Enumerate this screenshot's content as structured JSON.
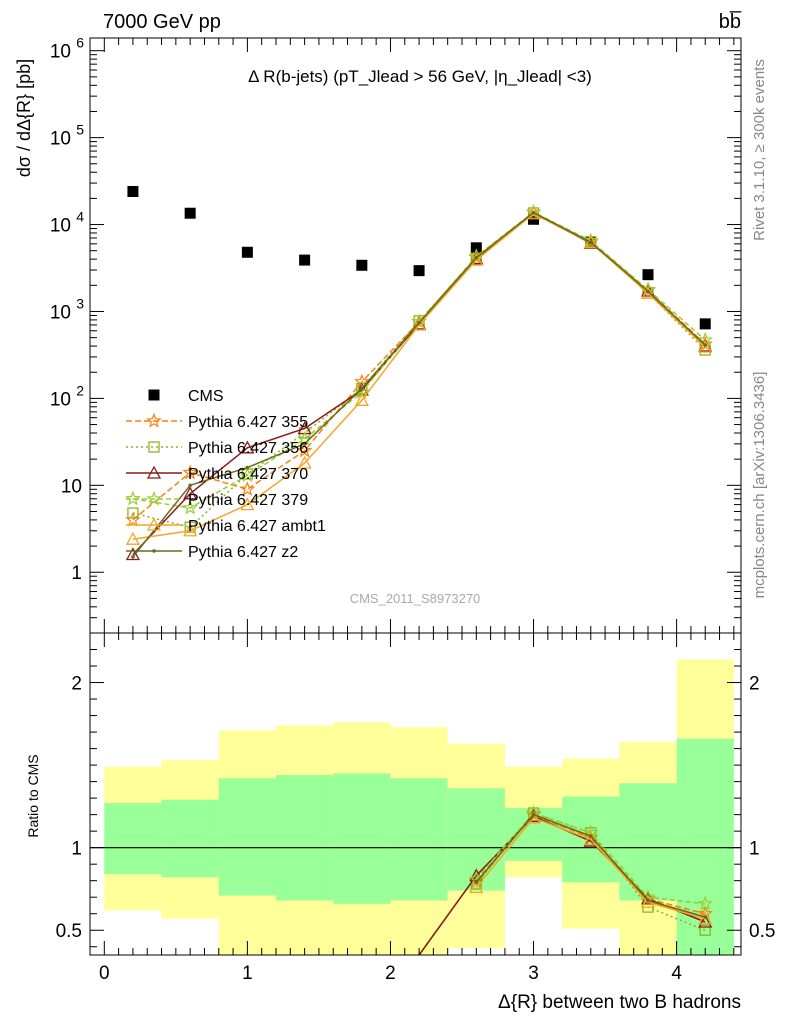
{
  "header": {
    "left": "7000 GeV pp",
    "right": "bb̅",
    "side_right_top": "Rivet 3.1.10, ≥ 300k events",
    "side_right_bottom": "mcplots.cern.ch [arXiv:1306.3436]",
    "watermark": "CMS_2011_S8973270"
  },
  "chart_data": [
    {
      "type": "scatter",
      "title": "Δ R(b-jets) (pT_Jlead > 56 GeV, |η_Jlead| <3)",
      "ylabel": "dσ / dΔ{R} [pb]",
      "yscale": "log",
      "ylim": [
        0.2,
        1400000
      ],
      "xlim": [
        -0.1,
        4.45
      ],
      "yticks": [
        {
          "v": 1000000,
          "base": "10",
          "exp": "6"
        },
        {
          "v": 100000,
          "base": "10",
          "exp": "5"
        },
        {
          "v": 10000,
          "base": "10",
          "exp": "4"
        },
        {
          "v": 1000,
          "base": "10",
          "exp": "3"
        },
        {
          "v": 100,
          "base": "10",
          "exp": "2"
        },
        {
          "v": 10,
          "base": "10",
          "exp": ""
        },
        {
          "v": 1,
          "base": "1",
          "exp": ""
        }
      ],
      "legend_position": "left-middle",
      "series": [
        {
          "name": "CMS",
          "color": "#000000",
          "marker": "square",
          "dash": "none",
          "x": [
            0.2,
            0.6,
            1.0,
            1.4,
            1.8,
            2.2,
            2.6,
            3.0,
            3.4,
            3.8,
            4.2
          ],
          "y": [
            24000,
            13500,
            4800,
            3900,
            3400,
            2950,
            5400,
            11500,
            6200,
            2650,
            720
          ]
        },
        {
          "name": "Pythia 6.427 355",
          "color": "#ff7f0e",
          "marker": "star",
          "dash": "6,3",
          "x": [
            0.2,
            0.6,
            1.0,
            1.4,
            1.8,
            2.2,
            2.6,
            3.0,
            3.4,
            3.8,
            4.2
          ],
          "y": [
            4.0,
            14.0,
            9.0,
            25.0,
            155,
            760,
            4200,
            13800,
            6300,
            1750,
            420
          ]
        },
        {
          "name": "Pythia 6.427 356",
          "color": "#8fb31f",
          "marker": "open-square",
          "dash": "2,3",
          "x": [
            0.2,
            0.6,
            1.0,
            1.4,
            1.8,
            2.2,
            2.6,
            3.0,
            3.4,
            3.8,
            4.2
          ],
          "y": [
            4.8,
            3.3,
            13.5,
            40,
            130,
            780,
            4100,
            13600,
            6350,
            1630,
            360
          ]
        },
        {
          "name": "Pythia 6.427 370",
          "color": "#8b1a1a",
          "marker": "open-triangle",
          "dash": "none",
          "x": [
            0.2,
            0.6,
            1.0,
            1.4,
            1.8,
            2.2,
            2.6,
            3.0,
            3.4,
            3.8,
            4.2
          ],
          "y": [
            1.6,
            8.0,
            27,
            45,
            125,
            720,
            4050,
            13500,
            6100,
            1720,
            400
          ]
        },
        {
          "name": "Pythia 6.427 379",
          "color": "#9acd32",
          "marker": "star",
          "dash": "5,3",
          "x": [
            0.2,
            0.6,
            1.0,
            1.4,
            1.8,
            2.2,
            2.6,
            3.0,
            3.4,
            3.8,
            4.2
          ],
          "y": [
            7.0,
            5.5,
            13.0,
            34,
            118,
            760,
            4300,
            13900,
            6500,
            1790,
            470
          ]
        },
        {
          "name": "Pythia 6.427 ambt1",
          "color": "#f5a623",
          "marker": "open-triangle",
          "dash": "none",
          "x": [
            0.2,
            0.6,
            1.0,
            1.4,
            1.8,
            2.2,
            2.6,
            3.0,
            3.4,
            3.8,
            4.2
          ],
          "y": [
            2.4,
            3.0,
            6.0,
            18.0,
            95,
            700,
            3900,
            13300,
            6200,
            1620,
            390
          ]
        },
        {
          "name": "Pythia 6.427 z2",
          "color": "#6b6b1e",
          "marker": "dot",
          "dash": "none",
          "x": [
            0.2,
            0.6,
            1.0,
            1.4,
            1.8,
            2.2,
            2.6,
            3.0,
            3.4,
            3.8,
            4.2
          ],
          "y": [
            1.5,
            10.0,
            16.0,
            30,
            130,
            740,
            4150,
            13700,
            6250,
            1700,
            410
          ]
        }
      ]
    },
    {
      "type": "line",
      "ylabel": "Ratio to CMS",
      "xlabel": "Δ{R} between two B hadrons",
      "xlim": [
        -0.1,
        4.45
      ],
      "ylim": [
        0.35,
        2.3
      ],
      "yticks": [
        0.5,
        1,
        2
      ],
      "ytick_labels": [
        "0.5",
        "1",
        "2"
      ],
      "xticks": [
        0,
        1,
        2,
        3,
        4
      ],
      "xtick_labels": [
        "0",
        "1",
        "2",
        "3",
        "4"
      ],
      "bins": [
        0.0,
        0.4,
        0.8,
        1.2,
        1.6,
        2.0,
        2.4,
        2.8,
        3.2,
        3.6,
        4.0,
        4.4
      ],
      "band_outer_lo": [
        0.62,
        0.57,
        0.3,
        0.3,
        0.3,
        0.3,
        0.39,
        0.82,
        0.51,
        0.3,
        0.3
      ],
      "band_outer_hi": [
        1.49,
        1.53,
        1.71,
        1.74,
        1.76,
        1.73,
        1.63,
        1.49,
        1.54,
        1.64,
        2.14
      ],
      "band_inner_lo": [
        0.84,
        0.82,
        0.71,
        0.68,
        0.66,
        0.68,
        0.74,
        0.92,
        0.79,
        0.68,
        0.3
      ],
      "band_inner_hi": [
        1.27,
        1.29,
        1.42,
        1.44,
        1.45,
        1.42,
        1.36,
        1.24,
        1.31,
        1.39,
        1.66
      ],
      "band_colors": {
        "outer": "#ffff99",
        "inner": "#99ff99"
      },
      "series": [
        {
          "name": "Pythia 6.427 355",
          "color": "#ff7f0e",
          "dash": "6,3",
          "x": [
            2.6,
            3.0,
            3.4,
            3.8,
            4.2
          ],
          "y": [
            0.8,
            1.2,
            1.06,
            0.69,
            0.6
          ]
        },
        {
          "name": "Pythia 6.427 356",
          "color": "#8fb31f",
          "dash": "2,3",
          "x": [
            2.6,
            3.0,
            3.4,
            3.8,
            4.2
          ],
          "y": [
            0.78,
            1.21,
            1.09,
            0.64,
            0.5
          ]
        },
        {
          "name": "Pythia 6.427 370",
          "color": "#8b1a1a",
          "dash": "none",
          "x": [
            2.2,
            2.6,
            3.0,
            3.4,
            3.8,
            4.2
          ],
          "y": [
            0.24,
            0.83,
            1.19,
            1.04,
            0.69,
            0.55
          ]
        },
        {
          "name": "Pythia 6.427 379",
          "color": "#9acd32",
          "dash": "5,3",
          "x": [
            2.6,
            3.0,
            3.4,
            3.8,
            4.2
          ],
          "y": [
            0.81,
            1.21,
            1.09,
            0.7,
            0.66
          ]
        },
        {
          "name": "Pythia 6.427 ambt1",
          "color": "#f5a623",
          "dash": "none",
          "x": [
            2.6,
            3.0,
            3.4,
            3.8,
            4.2
          ],
          "y": [
            0.76,
            1.18,
            1.05,
            0.67,
            0.57
          ]
        },
        {
          "name": "Pythia 6.427 z2",
          "color": "#6b6b1e",
          "dash": "none",
          "x": [
            2.6,
            3.0,
            3.4,
            3.8,
            4.2
          ],
          "y": [
            0.79,
            1.2,
            1.07,
            0.68,
            0.58
          ]
        }
      ]
    }
  ]
}
